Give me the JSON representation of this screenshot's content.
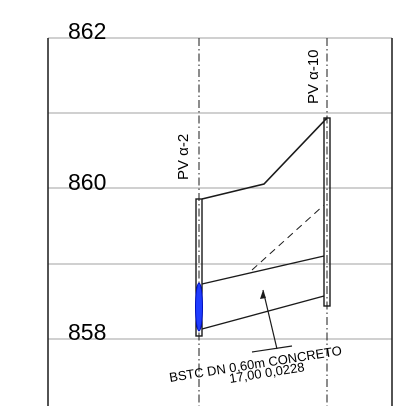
{
  "profile": {
    "elevations": [
      {
        "label": "862",
        "value": 862
      },
      {
        "label": "860",
        "value": 860
      },
      {
        "label": "858",
        "value": 858
      }
    ],
    "manholes": [
      {
        "id": "pv-alpha-2",
        "label": "PV α-2"
      },
      {
        "id": "pv-alpha-10",
        "label": "PV α-10"
      }
    ],
    "pipe": {
      "line1": "BSTC  DN  0,60m  CONCRETO",
      "line2": "17,00  0,0228"
    }
  },
  "colors": {
    "grid": "#b5b5b5",
    "ink": "#1a1a1a",
    "water": "#1f3cff"
  }
}
